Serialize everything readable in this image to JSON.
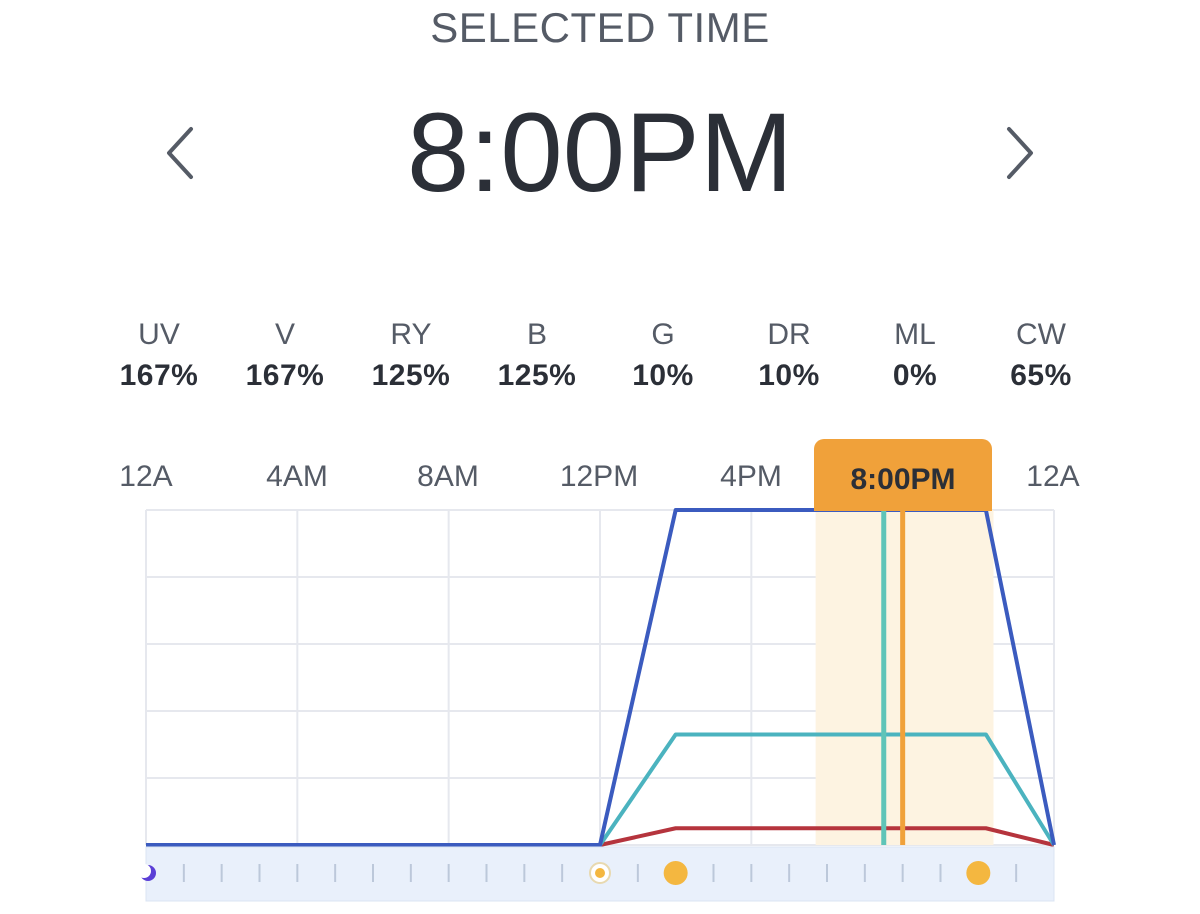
{
  "header": {
    "section_title": "SELECTED TIME",
    "selected_time": "8:00PM",
    "prev_icon": "chevron-left-icon",
    "next_icon": "chevron-right-icon"
  },
  "channels": [
    {
      "name": "UV",
      "value": "167%"
    },
    {
      "name": "V",
      "value": "167%"
    },
    {
      "name": "RY",
      "value": "125%"
    },
    {
      "name": "B",
      "value": "125%"
    },
    {
      "name": "G",
      "value": "10%"
    },
    {
      "name": "DR",
      "value": "10%"
    },
    {
      "name": "ML",
      "value": "0%"
    },
    {
      "name": "CW",
      "value": "65%"
    }
  ],
  "timeline": {
    "tick_labels": [
      "12A",
      "4AM",
      "8AM",
      "12PM",
      "4PM",
      "8:00PM",
      "12A"
    ],
    "selected_label": "8:00PM",
    "selected_hour": 20
  },
  "colors": {
    "accent": "#f0a13a",
    "highlight": "#fdf3e1",
    "blue_line": "#3b5bbf",
    "teal_line": "#4bb3bf",
    "red_line": "#b5343d",
    "teal_marker": "#5fc4b8",
    "grid": "#e6e8ee",
    "track": "#e9f0fb",
    "point": "#f4b740",
    "start_point": "#5b3fd6"
  },
  "chart_data": {
    "type": "line",
    "x_unit": "hour",
    "xlim": [
      0,
      24
    ],
    "ylim": [
      0,
      100
    ],
    "grid": true,
    "series": [
      {
        "color": "#3b5bbf",
        "x": [
          0,
          12,
          14,
          22.2,
          24
        ],
        "y": [
          0,
          0,
          100,
          100,
          0
        ]
      },
      {
        "color": "#4bb3bf",
        "x": [
          0,
          12,
          14,
          22.2,
          24
        ],
        "y": [
          0,
          0,
          33,
          33,
          0
        ]
      },
      {
        "color": "#b5343d",
        "x": [
          0,
          12,
          14,
          22.2,
          24
        ],
        "y": [
          0,
          0,
          5,
          5,
          0
        ]
      }
    ],
    "highlight_range": [
      17.7,
      22.4
    ],
    "current_time_marker": 19.5,
    "selected_time_marker": 20,
    "schedule_points": [
      {
        "hour": 0,
        "kind": "start"
      },
      {
        "hour": 12,
        "kind": "small"
      },
      {
        "hour": 14,
        "kind": "large"
      },
      {
        "hour": 22,
        "kind": "large"
      }
    ]
  }
}
